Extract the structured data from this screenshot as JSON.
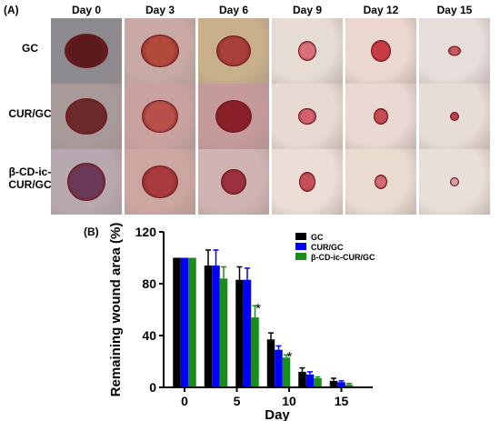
{
  "panel_a": {
    "label": "(A)",
    "days": [
      "Day 0",
      "Day 3",
      "Day 6",
      "Day 9",
      "Day 12",
      "Day 15"
    ],
    "groups": [
      "GC",
      "CUR/GC",
      "β-CD-ic-CUR/GC"
    ]
  },
  "panel_b": {
    "label": "(B)"
  },
  "chart_data": {
    "type": "bar",
    "xlabel": "Day",
    "ylabel": "Remaining wound area (%)",
    "x": [
      0,
      3,
      6,
      9,
      12,
      15
    ],
    "xticks": [
      0,
      5,
      10,
      15
    ],
    "xlim": [
      -2,
      18
    ],
    "ylim": [
      0,
      120
    ],
    "yticks": [
      0,
      40,
      80,
      120
    ],
    "grid": false,
    "legend_position": "top-right",
    "series": [
      {
        "name": "GC",
        "color": "#000000",
        "values": [
          100,
          94,
          83,
          37,
          12,
          5
        ],
        "errors": [
          0,
          12,
          10,
          5,
          3,
          2
        ]
      },
      {
        "name": "CUR/GC",
        "color": "#0000ff",
        "values": [
          100,
          94,
          83,
          29,
          10,
          4
        ],
        "errors": [
          0,
          12,
          9,
          3,
          2,
          1
        ]
      },
      {
        "name": "β-CD-ic-CUR/GC",
        "color": "#1a8c1a",
        "values": [
          100,
          84,
          54,
          23,
          7,
          2
        ],
        "errors": [
          0,
          9,
          9,
          2,
          1,
          1
        ]
      }
    ],
    "annotations": [
      {
        "text": "*",
        "x": 6,
        "y": 63
      },
      {
        "text": "*",
        "x": 9,
        "y": 26
      }
    ]
  }
}
